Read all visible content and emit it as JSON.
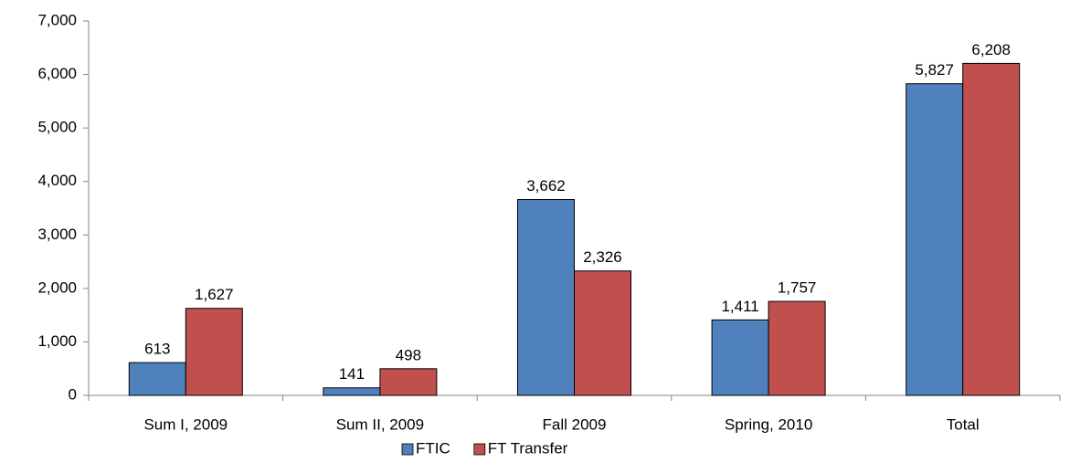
{
  "chart_data": {
    "type": "bar",
    "categories": [
      "Sum I, 2009",
      "Sum II, 2009",
      "Fall 2009",
      "Spring, 2010",
      "Total"
    ],
    "series": [
      {
        "name": "FTIC",
        "color": "#4f81bd",
        "values": [
          613,
          141,
          3662,
          1411,
          5827
        ],
        "value_labels": [
          "613",
          "141",
          "3,662",
          "1,411",
          "5,827"
        ]
      },
      {
        "name": "FT Transfer",
        "color": "#c0504d",
        "values": [
          1627,
          498,
          2326,
          1757,
          6208
        ],
        "value_labels": [
          "1,627",
          "498",
          "2,326",
          "1,757",
          "6,208"
        ]
      }
    ],
    "ylim": [
      0,
      7000
    ],
    "yticks": [
      0,
      {
        "value": 1000,
        "label": "1,000"
      },
      {
        "value": 2000,
        "label": "2,000"
      },
      {
        "value": 3000,
        "label": "3,000"
      },
      {
        "value": 4000,
        "label": "4,000"
      },
      {
        "value": 5000,
        "label": "5,000"
      },
      {
        "value": 6000,
        "label": "6,000"
      },
      {
        "value": 7000,
        "label": "7,000"
      }
    ],
    "grid": false,
    "legend": "bottom"
  }
}
